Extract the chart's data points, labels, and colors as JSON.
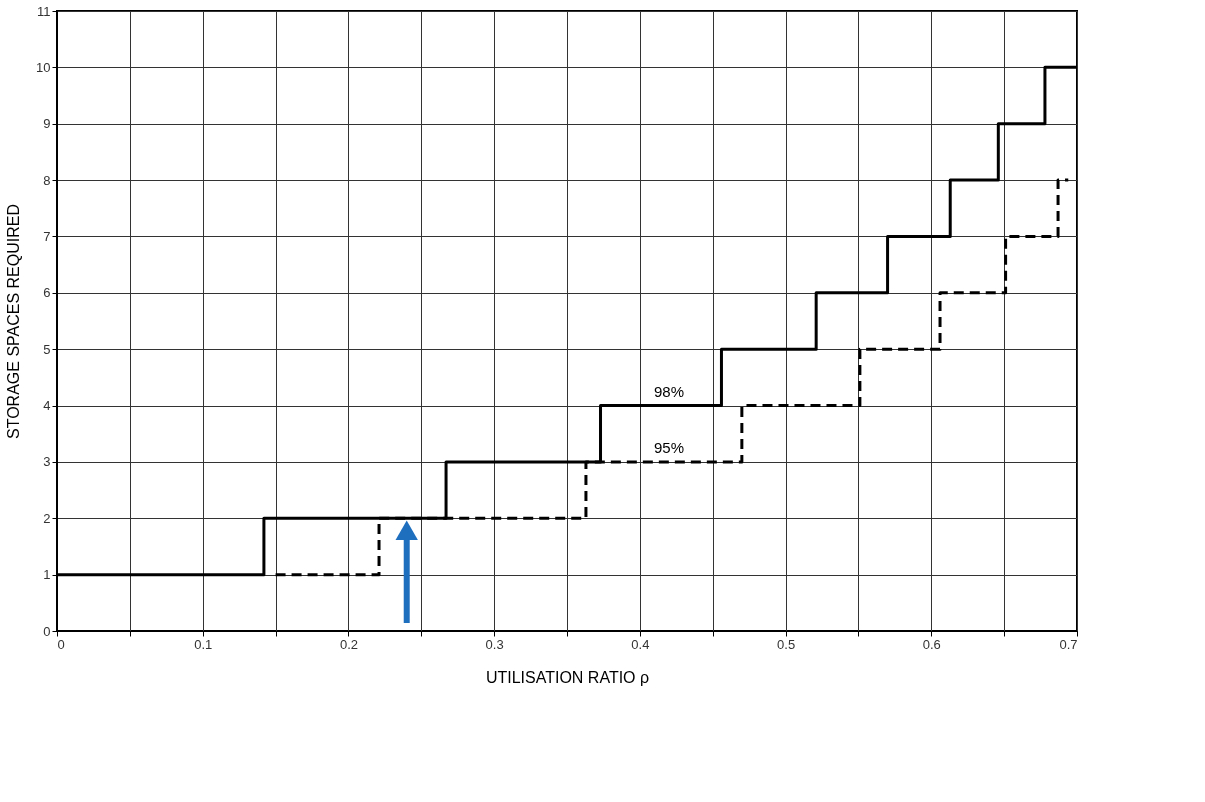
{
  "chart_data": {
    "type": "step",
    "xlabel": "UTILISATION RATIO ρ",
    "ylabel": "STORAGE SPACES REQUIRED",
    "series": [
      {
        "color": "#000000",
        "line_style": "solid",
        "x": [
          0,
          0.142,
          0.267,
          0.373,
          0.456,
          0.521,
          0.57,
          0.613,
          0.646,
          0.678,
          0.7
        ],
        "values": [
          1,
          2,
          3,
          4,
          5,
          6,
          7,
          8,
          9,
          10,
          10
        ]
      },
      {
        "color": "#000000",
        "line_style": "dashed",
        "x": [
          0.15,
          0.221,
          0.363,
          0.47,
          0.551,
          0.606,
          0.651,
          0.687,
          0.694
        ],
        "values": [
          1,
          2,
          3,
          4,
          5,
          6,
          7,
          8,
          8
        ]
      }
    ],
    "annotations": [
      {
        "text": "98%",
        "x": 0.42,
        "y": 4
      },
      {
        "text": "95%",
        "x": 0.42,
        "y": 3
      }
    ],
    "xlim": [
      0,
      0.7
    ],
    "ylim": [
      0,
      11
    ],
    "xticks": [
      0,
      {
        "value": 0.05,
        "label": null
      },
      0.1,
      {
        "value": 0.15,
        "label": null
      },
      0.2,
      {
        "value": 0.25,
        "label": null
      },
      0.3,
      {
        "value": 0.35,
        "label": null
      },
      0.4,
      {
        "value": 0.45,
        "label": null
      },
      0.5,
      {
        "value": 0.55,
        "label": null
      },
      0.6,
      {
        "value": 0.65,
        "label": null
      },
      0.7
    ],
    "yticks": [
      0,
      1,
      2,
      3,
      4,
      5,
      6,
      7,
      8,
      9,
      10,
      11
    ],
    "grid": true,
    "marker": "none"
  }
}
